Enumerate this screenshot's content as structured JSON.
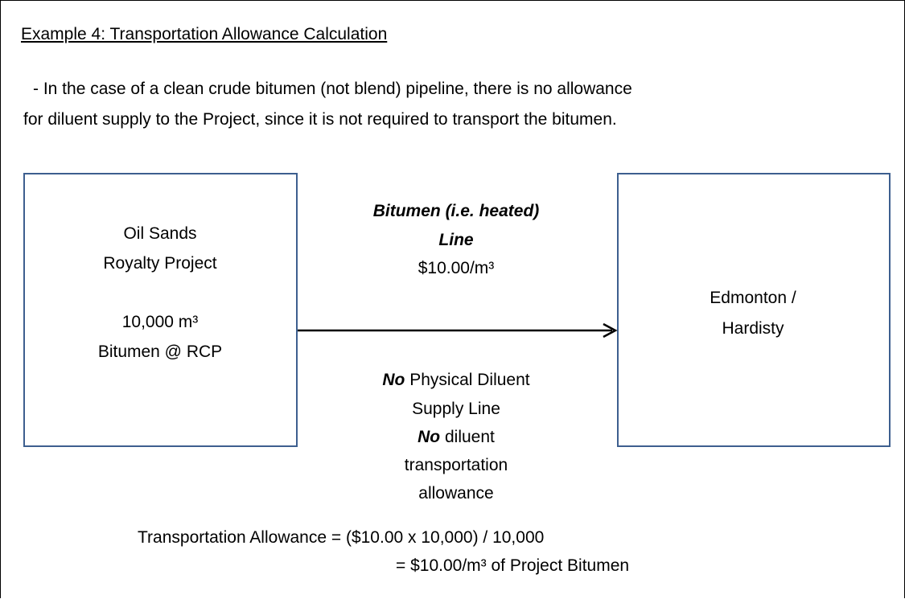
{
  "title": "Example 4: Transportation Allowance Calculation",
  "intro": [
    "- In the case of a clean crude bitumen (not blend) pipeline, there is no allowance",
    "for diluent supply to the Project, since it is not required to transport the bitumen."
  ],
  "nodes": [
    {
      "label": [
        "Oil Sands",
        "Royalty Project"
      ],
      "detail": [
        "10,000 m³",
        "Bitumen @ RCP"
      ]
    },
    {
      "label": [
        "Edmonton /",
        "Hardisty"
      ]
    }
  ],
  "edge": {
    "above": [
      "Bitumen (i.e. heated)",
      "Line"
    ],
    "rate": "$10.00/m³",
    "below": {
      "line1_bold": "No",
      "line1_rest": " Physical Diluent",
      "line2": "Supply Line",
      "line3_bold": "No",
      "line3_rest": " diluent",
      "line4": "transportation",
      "line5": "allowance"
    }
  },
  "formula": [
    "Transportation Allowance = ($10.00 x 10,000) / 10,000",
    "= $10.00/m³ of Project Bitumen"
  ]
}
